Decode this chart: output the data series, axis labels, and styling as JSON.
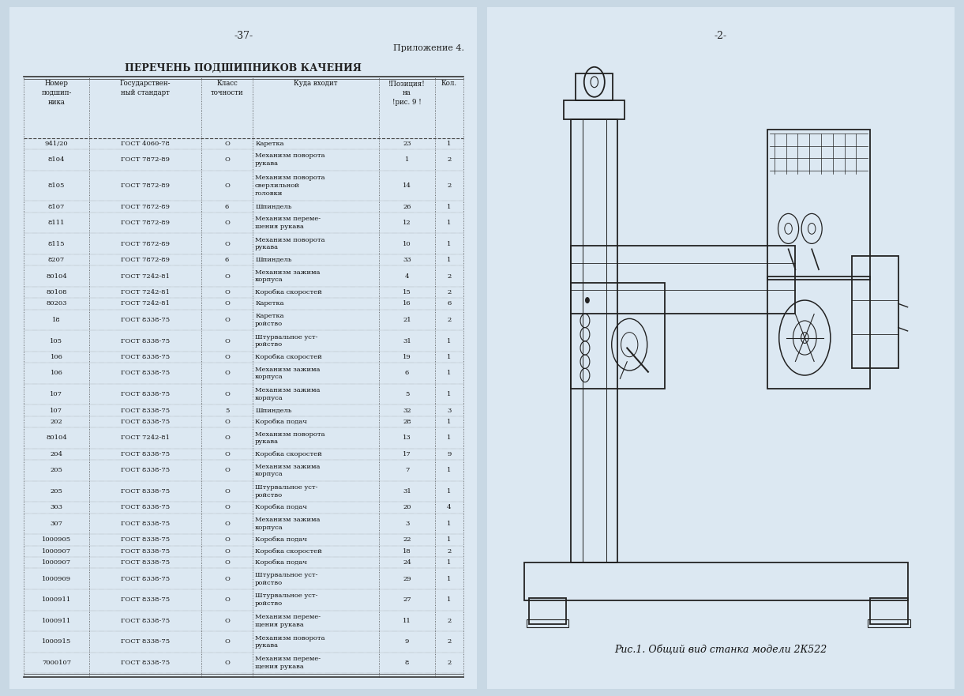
{
  "bg_color": "#dce8f0",
  "page_bg": "#e8eef5",
  "left_page": {
    "page_num": "-37-",
    "appendix": "Приложение 4.",
    "title": "ПЕРЕЧЕНЬ ПОДШИПНИКОВ КАЧЕНИЯ",
    "col_headers": [
      "Номер\nподшип-\nника",
      "Государствен-\nный стандарт",
      "Класс\nточности",
      "Куда входит",
      "!Позиция!\nна\n!рис. 9 !",
      "Кол."
    ],
    "rows": [
      [
        "941/20",
        "ГОСТ 4060-78",
        "О",
        "Каретка",
        "23",
        "1"
      ],
      [
        "8104",
        "ГОСТ 7872-89",
        "О",
        "Механизм поворота\nрукава",
        "1",
        "2"
      ],
      [
        "8105",
        "ГОСТ 7872-89",
        "О",
        "Механизм поворота\nсверлильной\nголовки",
        "14",
        "2"
      ],
      [
        "8107",
        "ГОСТ 7872-89",
        "6",
        "Шпиндель",
        "26",
        "1"
      ],
      [
        "8111",
        "ГОСТ 7872-89",
        "О",
        "Механизм переме-\nшения рукава",
        "12",
        "1"
      ],
      [
        "8115",
        "ГОСТ 7872-89",
        "О",
        "Механизм поворота\nрукава",
        "10",
        "1"
      ],
      [
        "8207",
        "ГОСТ 7872-89",
        "6",
        "Шпиндель",
        "33",
        "1"
      ],
      [
        "80104",
        "ГОСТ 7242-81",
        "О",
        "Механизм зажима\nкорпуса",
        "4",
        "2"
      ],
      [
        "80108",
        "ГОСТ 7242-81",
        "О",
        "Коробка скоростей",
        "15",
        "2"
      ],
      [
        "80203",
        "ГОСТ 7242-81",
        "О",
        "Каретка",
        "16",
        "6"
      ],
      [
        "18",
        "ГОСТ 8338-75",
        "О",
        "Каретка\nройство",
        "21",
        "2"
      ],
      [
        "105",
        "ГОСТ 8338-75",
        "О",
        "Штурвальное уст-\nройство",
        "31",
        "1"
      ],
      [
        "106",
        "ГОСТ 8338-75",
        "О",
        "Коробка скоростей",
        "19",
        "1"
      ],
      [
        "106",
        "ГОСТ 8338-75",
        "О",
        "Механизм зажима\nкорпуса",
        "6",
        "1"
      ],
      [
        "107",
        "ГОСТ 8338-75",
        "О",
        "Механизм зажима\nкорпуса",
        "5",
        "1"
      ],
      [
        "107",
        "ГОСТ 8338-75",
        "5",
        "Шпиндель",
        "32",
        "3"
      ],
      [
        "202",
        "ГОСТ 8338-75",
        "О",
        "Коробка подач",
        "28",
        "1"
      ],
      [
        "80104",
        "ГОСТ 7242-81",
        "О",
        "Механизм поворота\nрукава",
        "13",
        "1"
      ],
      [
        "204",
        "ГОСТ 8338-75",
        "О",
        "Коробка скоростей",
        "17",
        "9"
      ],
      [
        "205",
        "ГОСТ 8338-75",
        "О",
        "Механизм зажима\nкорпуса",
        "7",
        "1"
      ],
      [
        "205",
        "ГОСТ 8338-75",
        "О",
        "Штурвальное уст-\nройство",
        "31",
        "1"
      ],
      [
        "303",
        "ГОСТ 8338-75",
        "О",
        "Коробка подач",
        "20",
        "4"
      ],
      [
        "307",
        "ГОСТ 8338-75",
        "О",
        "Механизм зажима\nкорпуса",
        "3",
        "1"
      ],
      [
        "1000905",
        "ГОСТ 8338-75",
        "О",
        "Коробка подач",
        "22",
        "1"
      ],
      [
        "1000907",
        "ГОСТ 8338-75",
        "О",
        "Коробка скоростей",
        "18",
        "2"
      ],
      [
        "1000907",
        "ГОСТ 8338-75",
        "О",
        "Коробка подач",
        "24",
        "1"
      ],
      [
        "1000909",
        "ГОСТ 8338-75",
        "О",
        "Штурвальное уст-\nройство",
        "29",
        "1"
      ],
      [
        "1000911",
        "ГОСТ 8338-75",
        "О",
        "Штурвальное уст-\nройство",
        "27",
        "1"
      ],
      [
        "1000911",
        "ГОСТ 8338-75",
        "О",
        "Механизм переме-\nщения рукава",
        "11",
        "2"
      ],
      [
        "1000915",
        "ГОСТ 8338-75",
        "О",
        "Механизм поворота\nрукава",
        "9",
        "2"
      ],
      [
        "7000107",
        "ГОСТ 8338-75",
        "О",
        "Механизм переме-\nщения рукава",
        "8",
        "2"
      ]
    ]
  },
  "right_page": {
    "page_num": "-2-",
    "caption": "Рис.1. Общий вид станка модели 2К522"
  }
}
